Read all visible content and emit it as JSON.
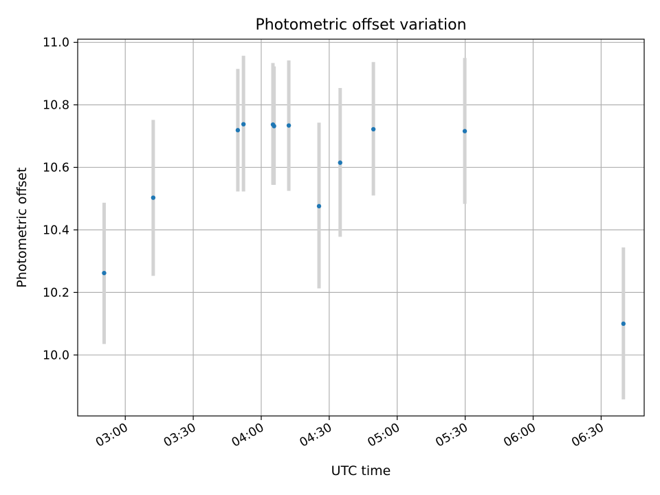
{
  "chart_data": {
    "type": "scatter",
    "title": "Photometric offset variation",
    "xlabel": "UTC time",
    "ylabel": "Photometric offset",
    "x_axis_kind": "time",
    "xlim": [
      "02:39",
      "06:49"
    ],
    "ylim": [
      9.805,
      11.01
    ],
    "x_ticks": [
      "03:00",
      "03:30",
      "04:00",
      "04:30",
      "05:00",
      "05:30",
      "06:00",
      "06:30"
    ],
    "y_ticks": [
      10.0,
      10.2,
      10.4,
      10.6,
      10.8,
      11.0
    ],
    "y_tick_labels": [
      "10.0",
      "10.2",
      "10.4",
      "10.6",
      "10.8",
      "11.0"
    ],
    "grid": true,
    "points": [
      {
        "x": "02:50:40",
        "y": 10.262,
        "yerr_low": 10.035,
        "yerr_high": 10.487
      },
      {
        "x": "03:12:20",
        "y": 10.503,
        "yerr_low": 10.253,
        "yerr_high": 10.752
      },
      {
        "x": "03:49:40",
        "y": 10.719,
        "yerr_low": 10.523,
        "yerr_high": 10.915
      },
      {
        "x": "03:52:10",
        "y": 10.738,
        "yerr_low": 10.523,
        "yerr_high": 10.957
      },
      {
        "x": "04:05:10",
        "y": 10.737,
        "yerr_low": 10.544,
        "yerr_high": 10.934
      },
      {
        "x": "04:05:40",
        "y": 10.732,
        "yerr_low": 10.544,
        "yerr_high": 10.923
      },
      {
        "x": "04:12:10",
        "y": 10.734,
        "yerr_low": 10.525,
        "yerr_high": 10.942
      },
      {
        "x": "04:25:30",
        "y": 10.476,
        "yerr_low": 10.213,
        "yerr_high": 10.743
      },
      {
        "x": "04:34:50",
        "y": 10.615,
        "yerr_low": 10.378,
        "yerr_high": 10.854
      },
      {
        "x": "04:49:30",
        "y": 10.722,
        "yerr_low": 10.51,
        "yerr_high": 10.937
      },
      {
        "x": "05:29:50",
        "y": 10.716,
        "yerr_low": 10.483,
        "yerr_high": 10.95
      },
      {
        "x": "06:39:50",
        "y": 10.1,
        "yerr_low": 9.858,
        "yerr_high": 10.344
      }
    ],
    "colors": {
      "point": "#1f77b4",
      "errorbar": "#d3d3d3",
      "grid": "#b0b0b0",
      "axes": "#000000"
    }
  }
}
